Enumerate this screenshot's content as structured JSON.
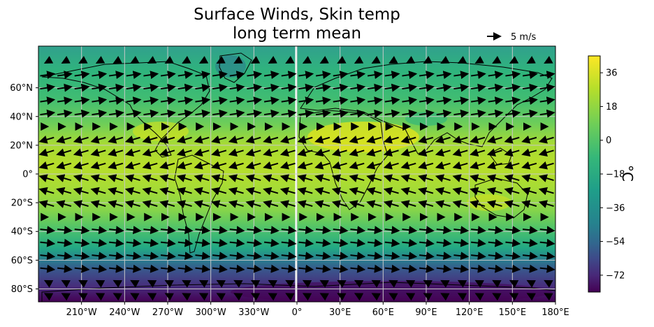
{
  "title": {
    "line1": "Surface Winds, Skin temp",
    "line2": "long term mean"
  },
  "quiver_key": {
    "label": "5 m/s",
    "magnitude": 5,
    "unit": "m/s"
  },
  "map": {
    "projection": "PlateCarree",
    "central_longitude": 180,
    "grid": true,
    "lon_ticks": [
      "210°W",
      "240°W",
      "270°W",
      "300°W",
      "330°W",
      "0°",
      "30°E",
      "60°E",
      "90°E",
      "120°E",
      "150°E",
      "180°E"
    ],
    "lat_ticks": [
      "60°N",
      "40°N",
      "20°N",
      "0°",
      "20°S",
      "40°S",
      "60°S",
      "80°S"
    ],
    "lon_tick_values": [
      -150,
      -120,
      -90,
      -60,
      -30,
      0,
      30,
      60,
      90,
      120,
      150,
      180
    ],
    "lat_tick_values": [
      60,
      40,
      20,
      0,
      -20,
      -40,
      -60,
      -80
    ]
  },
  "colorbar": {
    "label": "°C",
    "ticks": [
      "36",
      "18",
      "0",
      "−18",
      "−36",
      "−54",
      "−72"
    ],
    "tick_values": [
      36,
      18,
      0,
      -18,
      -36,
      -54,
      -72
    ],
    "range": [
      -81,
      45
    ],
    "colormap": "viridis"
  },
  "chart_data": {
    "type": "heatmap",
    "title": "Surface Winds, Skin temp long term mean",
    "variable": "Skin temperature",
    "unit": "°C",
    "vector_field": "Surface winds",
    "vector_unit": "m/s",
    "xlim": [
      -180,
      180
    ],
    "ylim": [
      -89,
      89
    ],
    "clim": [
      -81,
      45
    ]
  },
  "colors": {
    "ocean_tropics": "#b5de2b",
    "gridline": "#c8c8c8",
    "coastline": "#000000",
    "arrow": "#000000"
  }
}
